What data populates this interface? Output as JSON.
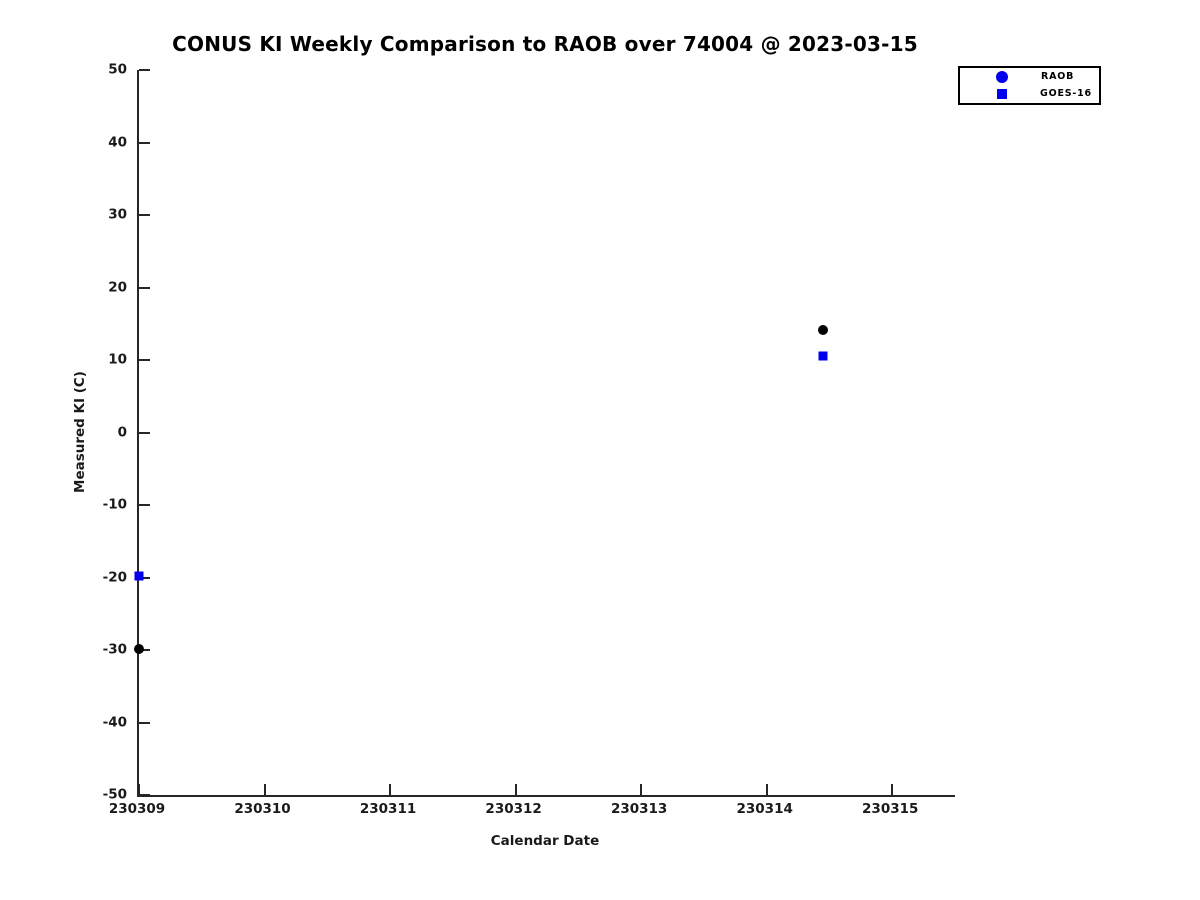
{
  "figure": {
    "title": "CONUS KI Weekly Comparison to RAOB over 74004 @ 2023-03-15"
  },
  "chart_data": {
    "type": "scatter",
    "title": "CONUS KI Weekly Comparison to RAOB over 74004 @ 2023-03-15",
    "xlabel": "Calendar Date",
    "ylabel": "Measured KI (C)",
    "xlim": [
      230309,
      230315.5
    ],
    "ylim": [
      -50,
      50
    ],
    "xticks": [
      230309,
      230310,
      230311,
      230312,
      230313,
      230314,
      230315
    ],
    "yticks": [
      50,
      40,
      30,
      20,
      10,
      0,
      -10,
      -20,
      -30,
      -40,
      -50
    ],
    "grid": false,
    "legend_position": "top-right",
    "series": [
      {
        "name": "RAOB",
        "marker": "circle",
        "marker_color": "#000000",
        "legend_marker_color": "#0000ee",
        "points": [
          {
            "x": 230309.0,
            "y": -29.8
          },
          {
            "x": 230314.45,
            "y": 14.2
          }
        ]
      },
      {
        "name": "GOES-16",
        "marker": "square",
        "marker_color": "#0000ee",
        "legend_marker_color": "#0000ee",
        "points": [
          {
            "x": 230309.0,
            "y": -19.8
          },
          {
            "x": 230314.45,
            "y": 10.6
          }
        ]
      }
    ]
  },
  "colors": {
    "accent_blue": "#0000ee",
    "marker_black": "#000000",
    "axis": "#262626"
  }
}
